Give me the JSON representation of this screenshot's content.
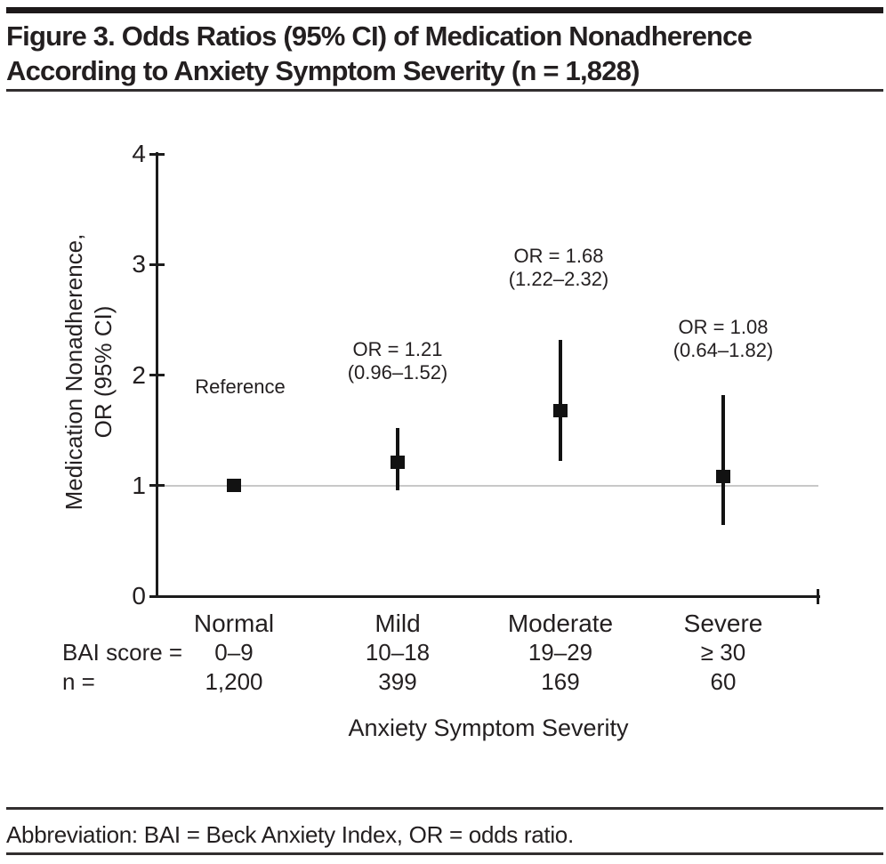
{
  "figure": {
    "title_line1": "Figure 3. Odds Ratios (95% CI) of Medication Nonadherence",
    "title_line2": "According to Anxiety Symptom Severity (n = 1,828)",
    "footnote": "Abbreviation: BAI = Beck Anxiety Index, OR = odds ratio."
  },
  "chart_data": {
    "type": "scatter",
    "title": "Odds Ratios (95% CI) of Medication Nonadherence According to Anxiety Symptom Severity",
    "xlabel": "Anxiety Symptom Severity",
    "ylabel_line1": "Medication Nonadherence,",
    "ylabel_line2": "OR (95% CI)",
    "ylim": [
      0,
      4
    ],
    "yticks": [
      0,
      1,
      2,
      3,
      4
    ],
    "reference_line_y": 1,
    "grid": false,
    "legend": "none",
    "row_labels": {
      "bai": "BAI score =",
      "n": "n ="
    },
    "categories": [
      "Normal",
      "Mild",
      "Moderate",
      "Severe"
    ],
    "points": [
      {
        "category": "Normal",
        "bai_score": "0–9",
        "n": "1,200",
        "or": 1.0,
        "ci": null,
        "annotation": [
          "Reference"
        ]
      },
      {
        "category": "Mild",
        "bai_score": "10–18",
        "n": "399",
        "or": 1.21,
        "ci": [
          0.96,
          1.52
        ],
        "annotation": [
          "OR = 1.21",
          "(0.96–1.52)"
        ]
      },
      {
        "category": "Moderate",
        "bai_score": "19–29",
        "n": "169",
        "or": 1.68,
        "ci": [
          1.22,
          2.32
        ],
        "annotation": [
          "OR = 1.68",
          "(1.22–2.32)"
        ]
      },
      {
        "category": "Severe",
        "bai_score": "≥ 30",
        "n": "60",
        "or": 1.08,
        "ci": [
          0.64,
          1.82
        ],
        "annotation": [
          "OR = 1.08",
          "(0.64–1.82)"
        ]
      }
    ]
  },
  "colors": {
    "text": "#231f20",
    "axis": "#1c1c1c",
    "marker": "#121212",
    "reference_line": "#c8c8c8",
    "rule": "#322e2f"
  }
}
